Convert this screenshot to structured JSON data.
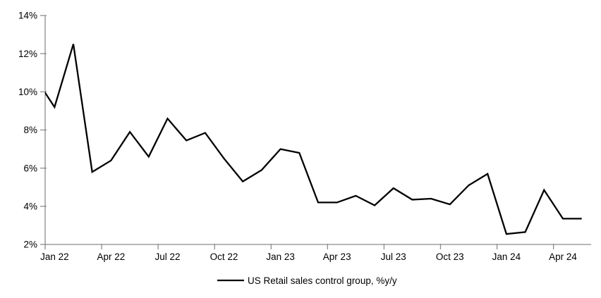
{
  "chart_data": {
    "type": "line",
    "title": "",
    "legend_label": "US Retail sales control group, %y/y",
    "legend_position": "bottom-center",
    "grid": "off",
    "x": [
      "Jan 22",
      "Feb 22",
      "Mar 22",
      "Apr 22",
      "May 22",
      "Jun 22",
      "Jul 22",
      "Aug 22",
      "Sep 22",
      "Oct 22",
      "Nov 22",
      "Dec 22",
      "Jan 23",
      "Feb 23",
      "Mar 23",
      "Apr 23",
      "May 23",
      "Jun 23",
      "Jul 23",
      "Aug 23",
      "Sep 23",
      "Oct 23",
      "Nov 23",
      "Dec 23",
      "Jan 24",
      "Feb 24",
      "Mar 24",
      "Apr 24",
      "May 24"
    ],
    "values": [
      9.2,
      12.5,
      5.8,
      6.4,
      7.9,
      6.6,
      8.6,
      7.45,
      7.85,
      6.5,
      5.3,
      5.9,
      7.0,
      6.8,
      4.2,
      4.2,
      4.55,
      4.05,
      4.95,
      4.35,
      4.4,
      4.1,
      5.1,
      5.7,
      2.55,
      2.65,
      4.85,
      3.35,
      3.35
    ],
    "pre_series_point": {
      "x": "Dec 21",
      "value": 10.7,
      "note": "clipped at left axis; line enters plot at ~9.9%"
    },
    "ylim": [
      2,
      14
    ],
    "ylabel": "",
    "xlabel": "",
    "y_tick_values": [
      2,
      4,
      6,
      8,
      10,
      12,
      14
    ],
    "y_tick_labels": [
      "2%",
      "4%",
      "6%",
      "8%",
      "10%",
      "12%",
      "14%"
    ],
    "x_tick_labels": [
      "Jan 22",
      "Apr 22",
      "Jul 22",
      "Oct 22",
      "Jan 23",
      "Apr 23",
      "Jul 23",
      "Oct 23",
      "Jan 24",
      "Apr 24"
    ],
    "x_tick_step_months": 3,
    "colors": {
      "line": "#000000",
      "axis": "#8c8c8c",
      "text": "#000000",
      "background": "#ffffff"
    }
  }
}
